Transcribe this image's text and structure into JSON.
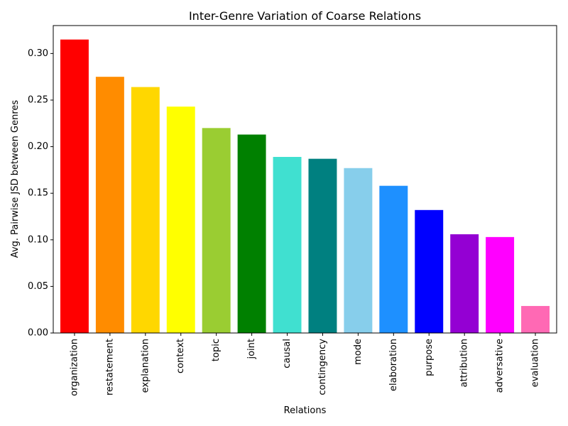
{
  "chart_data": {
    "type": "bar",
    "title": "Inter-Genre Variation of Coarse Relations",
    "xlabel": "Relations",
    "ylabel": "Avg. Pairwise JSD between Genres",
    "ylim": [
      0,
      0.33
    ],
    "yticks": [
      "0.00",
      "0.05",
      "0.10",
      "0.15",
      "0.20",
      "0.25",
      "0.30"
    ],
    "grid": false,
    "categories": [
      "organization",
      "restatement",
      "explanation",
      "context",
      "topic",
      "joint",
      "causal",
      "contingency",
      "mode",
      "elaboration",
      "purpose",
      "attribution",
      "adversative",
      "evaluation"
    ],
    "values": [
      0.315,
      0.275,
      0.264,
      0.243,
      0.22,
      0.213,
      0.189,
      0.187,
      0.177,
      0.158,
      0.132,
      0.106,
      0.103,
      0.029
    ],
    "colors": [
      "#ff0000",
      "#ff8c00",
      "#ffd700",
      "#ffff00",
      "#9acd32",
      "#008000",
      "#40e0d0",
      "#008080",
      "#87ceeb",
      "#1e90ff",
      "#0000ff",
      "#9400d3",
      "#ff00ff",
      "#ff69b4"
    ]
  }
}
